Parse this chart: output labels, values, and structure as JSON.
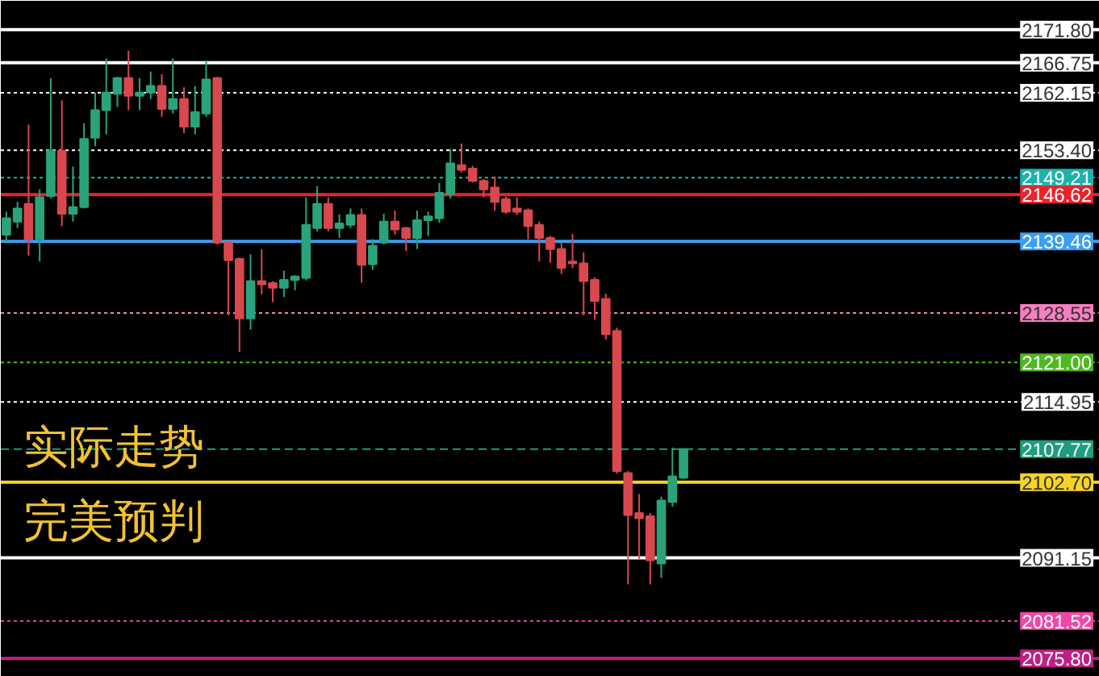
{
  "chart_data": {
    "type": "candlestick",
    "categories": [
      null,
      null,
      null,
      null,
      null,
      null,
      null,
      null,
      null,
      null,
      null,
      null,
      null,
      null,
      null,
      null,
      null,
      null,
      null,
      null,
      null,
      null,
      null,
      null,
      null,
      null,
      null,
      null,
      null,
      null,
      null,
      null,
      null,
      null,
      null,
      null,
      null,
      null,
      null,
      null,
      null,
      null,
      null,
      null,
      null,
      null,
      null,
      null,
      null,
      null,
      null,
      null,
      null,
      null,
      null,
      null,
      null,
      null,
      null,
      null,
      null,
      null,
      null,
      null,
      null,
      null,
      null,
      null,
      null,
      null,
      null,
      null,
      null,
      null,
      null,
      null,
      null,
      null,
      null,
      null,
      null,
      null,
      null,
      null,
      null,
      null,
      null,
      null,
      null,
      null,
      null,
      null,
      null,
      null,
      null,
      null,
      null,
      null,
      null
    ],
    "ohlc": [
      [
        2140.5,
        2144.0,
        2139.5,
        2143.0
      ],
      [
        2142.5,
        2145.5,
        2141.5,
        2144.5
      ],
      [
        2145.2,
        2157.3,
        2137.3,
        2139.8
      ],
      [
        2139.8,
        2147.4,
        2136.4,
        2146.2
      ],
      [
        2146.4,
        2164.4,
        2146.0,
        2153.3
      ],
      [
        2153.3,
        2161.0,
        2141.8,
        2143.7
      ],
      [
        2143.7,
        2150.9,
        2142.5,
        2144.7
      ],
      [
        2144.7,
        2157.5,
        2144.5,
        2155.1
      ],
      [
        2155.3,
        2162.2,
        2154.0,
        2159.5
      ],
      [
        2159.5,
        2167.4,
        2155.8,
        2162.2
      ],
      [
        2162.0,
        2164.6,
        2160.0,
        2164.4
      ],
      [
        2164.4,
        2168.6,
        2159.5,
        2161.7
      ],
      [
        2161.7,
        2164.4,
        2159.5,
        2162.2
      ],
      [
        2162.2,
        2165.4,
        2161.2,
        2163.2
      ],
      [
        2163.2,
        2165.0,
        2158.5,
        2159.7
      ],
      [
        2159.7,
        2167.4,
        2159.0,
        2161.2
      ],
      [
        2161.2,
        2163.0,
        2156.0,
        2157.0
      ],
      [
        2157.0,
        2163.2,
        2155.8,
        2159.2
      ],
      [
        2159.0,
        2167.1,
        2158.5,
        2164.2
      ],
      [
        2164.4,
        2164.6,
        2139.0,
        2139.3
      ],
      [
        2139.3,
        2139.5,
        2128.2,
        2136.6
      ],
      [
        2136.8,
        2137.0,
        2122.6,
        2127.7
      ],
      [
        2127.7,
        2137.5,
        2126.0,
        2133.4
      ],
      [
        2133.4,
        2138.3,
        2131.4,
        2132.9
      ],
      [
        2133.1,
        2133.4,
        2130.2,
        2132.4
      ],
      [
        2132.4,
        2135.0,
        2131.0,
        2133.6
      ],
      [
        2133.6,
        2134.3,
        2132.0,
        2134.1
      ],
      [
        2133.9,
        2146.2,
        2133.5,
        2142.0
      ],
      [
        2141.5,
        2147.9,
        2141.0,
        2145.2
      ],
      [
        2145.2,
        2146.2,
        2141.0,
        2141.5
      ],
      [
        2141.5,
        2143.6,
        2140.0,
        2142.2
      ],
      [
        2142.0,
        2144.5,
        2141.5,
        2143.5
      ],
      [
        2143.5,
        2144.5,
        2133.2,
        2135.9
      ],
      [
        2136.0,
        2139.8,
        2135.1,
        2138.8
      ],
      [
        2139.3,
        2143.7,
        2139.0,
        2142.5
      ],
      [
        2142.5,
        2144.2,
        2140.5,
        2141.3
      ],
      [
        2141.5,
        2141.7,
        2138.0,
        2140.0
      ],
      [
        2140.0,
        2144.2,
        2138.3,
        2142.7
      ],
      [
        2142.7,
        2144.0,
        2140.3,
        2143.3
      ],
      [
        2143.0,
        2148.4,
        2142.3,
        2146.9
      ],
      [
        2146.7,
        2153.6,
        2146.0,
        2151.4
      ],
      [
        2151.1,
        2154.4,
        2150.0,
        2150.4
      ],
      [
        2150.6,
        2151.0,
        2148.5,
        2148.7
      ],
      [
        2148.7,
        2149.0,
        2146.2,
        2147.4
      ],
      [
        2147.7,
        2149.4,
        2144.2,
        2145.5
      ],
      [
        2145.9,
        2146.3,
        2143.7,
        2144.0
      ],
      [
        2144.5,
        2146.2,
        2143.5,
        2144.0
      ],
      [
        2144.2,
        2144.5,
        2139.8,
        2141.8
      ],
      [
        2142.0,
        2142.5,
        2136.4,
        2140.0
      ],
      [
        2140.0,
        2140.3,
        2136.2,
        2138.3
      ],
      [
        2138.3,
        2139.3,
        2134.5,
        2135.4
      ],
      [
        2136.4,
        2140.6,
        2135.4,
        2136.1
      ],
      [
        2136.1,
        2137.8,
        2128.2,
        2133.4
      ],
      [
        2133.6,
        2134.0,
        2127.5,
        2130.4
      ],
      [
        2130.7,
        2131.5,
        2124.5,
        2125.3
      ],
      [
        2125.8,
        2126.3,
        2104.0,
        2104.4
      ],
      [
        2104.1,
        2104.4,
        2087.1,
        2097.7
      ],
      [
        2098.0,
        2100.9,
        2091.0,
        2097.2
      ],
      [
        2097.5,
        2098.0,
        2087.1,
        2090.8
      ],
      [
        2090.3,
        2100.5,
        2088.1,
        2099.9
      ],
      [
        2099.7,
        2108.0,
        2099.0,
        2103.6
      ],
      [
        2103.4,
        2107.9,
        2103.2,
        2107.77
      ],
      null,
      null,
      null,
      null,
      null,
      null,
      null,
      null,
      null,
      null,
      null,
      null,
      null,
      null,
      null,
      null,
      null,
      null,
      null,
      null,
      null,
      null,
      null,
      null,
      null,
      null,
      null,
      null,
      null,
      null,
      null,
      null,
      null,
      null,
      null,
      null,
      null
    ],
    "ylim": [
      2073.0,
      2176.2
    ],
    "yticks": [
      {
        "value": 2171.8,
        "label": "2171.80"
      },
      {
        "value": 2166.75,
        "label": "2166.75"
      },
      2162.15,
      {
        "value": 2153.4,
        "label": "2153.40"
      },
      2149.21,
      2146.62,
      2139.46,
      2128.55,
      {
        "value": 2121.0,
        "label": "2121.00"
      },
      2114.95,
      2107.77,
      {
        "value": 2102.7,
        "label": "2102.70"
      },
      2091.15,
      2081.52,
      {
        "value": 2075.8,
        "label": "2075.80"
      }
    ],
    "ref_lines": [
      {
        "axis": "y",
        "value": 2171.8,
        "color": "#ffffff",
        "line_style": "solid"
      },
      {
        "axis": "y",
        "value": 2166.75,
        "color": "#ffffff",
        "line_style": "solid"
      },
      {
        "axis": "y",
        "value": 2162.15,
        "color": "#ffffff",
        "line_style": "dotted"
      },
      {
        "axis": "y",
        "value": 2153.4,
        "color": "#ffffff",
        "line_style": "dotted"
      },
      {
        "axis": "y",
        "value": 2149.21,
        "color": "#20b2aa",
        "line_style": "dotted"
      },
      {
        "axis": "y",
        "value": 2146.62,
        "color": "#e8232b",
        "line_style": "solid"
      },
      {
        "axis": "y",
        "value": 2139.46,
        "color": "#3d9ef2",
        "line_style": "solid"
      },
      {
        "axis": "y",
        "value": 2128.55,
        "color": "#f57fc0",
        "line_style": "dotted"
      },
      {
        "axis": "y",
        "value": 2121.0,
        "color": "#4fb822",
        "line_style": "dotted"
      },
      {
        "axis": "y",
        "value": 2114.95,
        "color": "#ffffff",
        "line_style": "dotted"
      },
      {
        "axis": "y",
        "value": 2107.77,
        "color": "#1f9d7f",
        "line_style": "dashed"
      },
      {
        "axis": "y",
        "value": 2102.7,
        "color": "#f6d328",
        "line_style": "solid"
      },
      {
        "axis": "y",
        "value": 2091.15,
        "color": "#ffffff",
        "line_style": "solid"
      },
      {
        "axis": "y",
        "value": 2081.52,
        "color": "#ec4aa6",
        "line_style": "dotted"
      },
      {
        "axis": "y",
        "value": 2075.8,
        "color": "#c01f85",
        "line_style": "solid"
      }
    ],
    "annotations": [
      "实际走势",
      "完美预判"
    ]
  }
}
